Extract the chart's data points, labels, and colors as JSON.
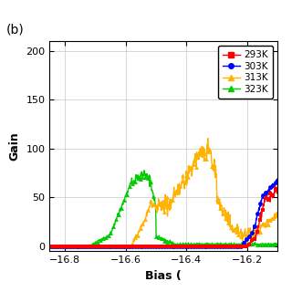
{
  "title": "(b)",
  "xlabel": "Bias (",
  "ylabel": "Gain",
  "xlim": [
    -16.85,
    -16.1
  ],
  "ylim": [
    -5,
    210
  ],
  "yticks": [
    0,
    50,
    100,
    150,
    200
  ],
  "xticks": [
    -16.8,
    -16.6,
    -16.4,
    -16.2
  ],
  "legend_entries": [
    "293K",
    "303K",
    "313K",
    "323K"
  ],
  "legend_colors": [
    "#FF0000",
    "#0000FF",
    "#FFB300",
    "#00CC00"
  ],
  "legend_markers": [
    "s",
    "o",
    "^",
    "^"
  ],
  "background_color": "#ffffff",
  "grid_color": "#c8c8c8"
}
